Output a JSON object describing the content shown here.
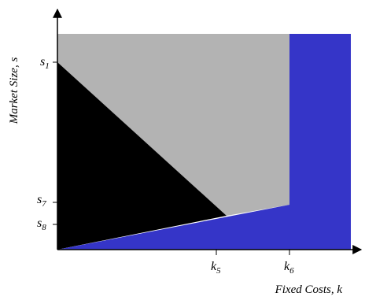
{
  "axes": {
    "x_label": "Fixed Costs, k",
    "y_label": "Market Size, s"
  },
  "ticks": {
    "y": [
      {
        "base": "s",
        "sub": "1"
      },
      {
        "base": "s",
        "sub": "7"
      },
      {
        "base": "s",
        "sub": "8"
      }
    ],
    "x": [
      {
        "base": "k",
        "sub": "5"
      },
      {
        "base": "k",
        "sub": "6"
      }
    ]
  },
  "regions": {
    "gray": {
      "color": "#b3b3b3"
    },
    "black": {
      "color": "#000000"
    },
    "blue": {
      "color": "#3535c8"
    }
  }
}
